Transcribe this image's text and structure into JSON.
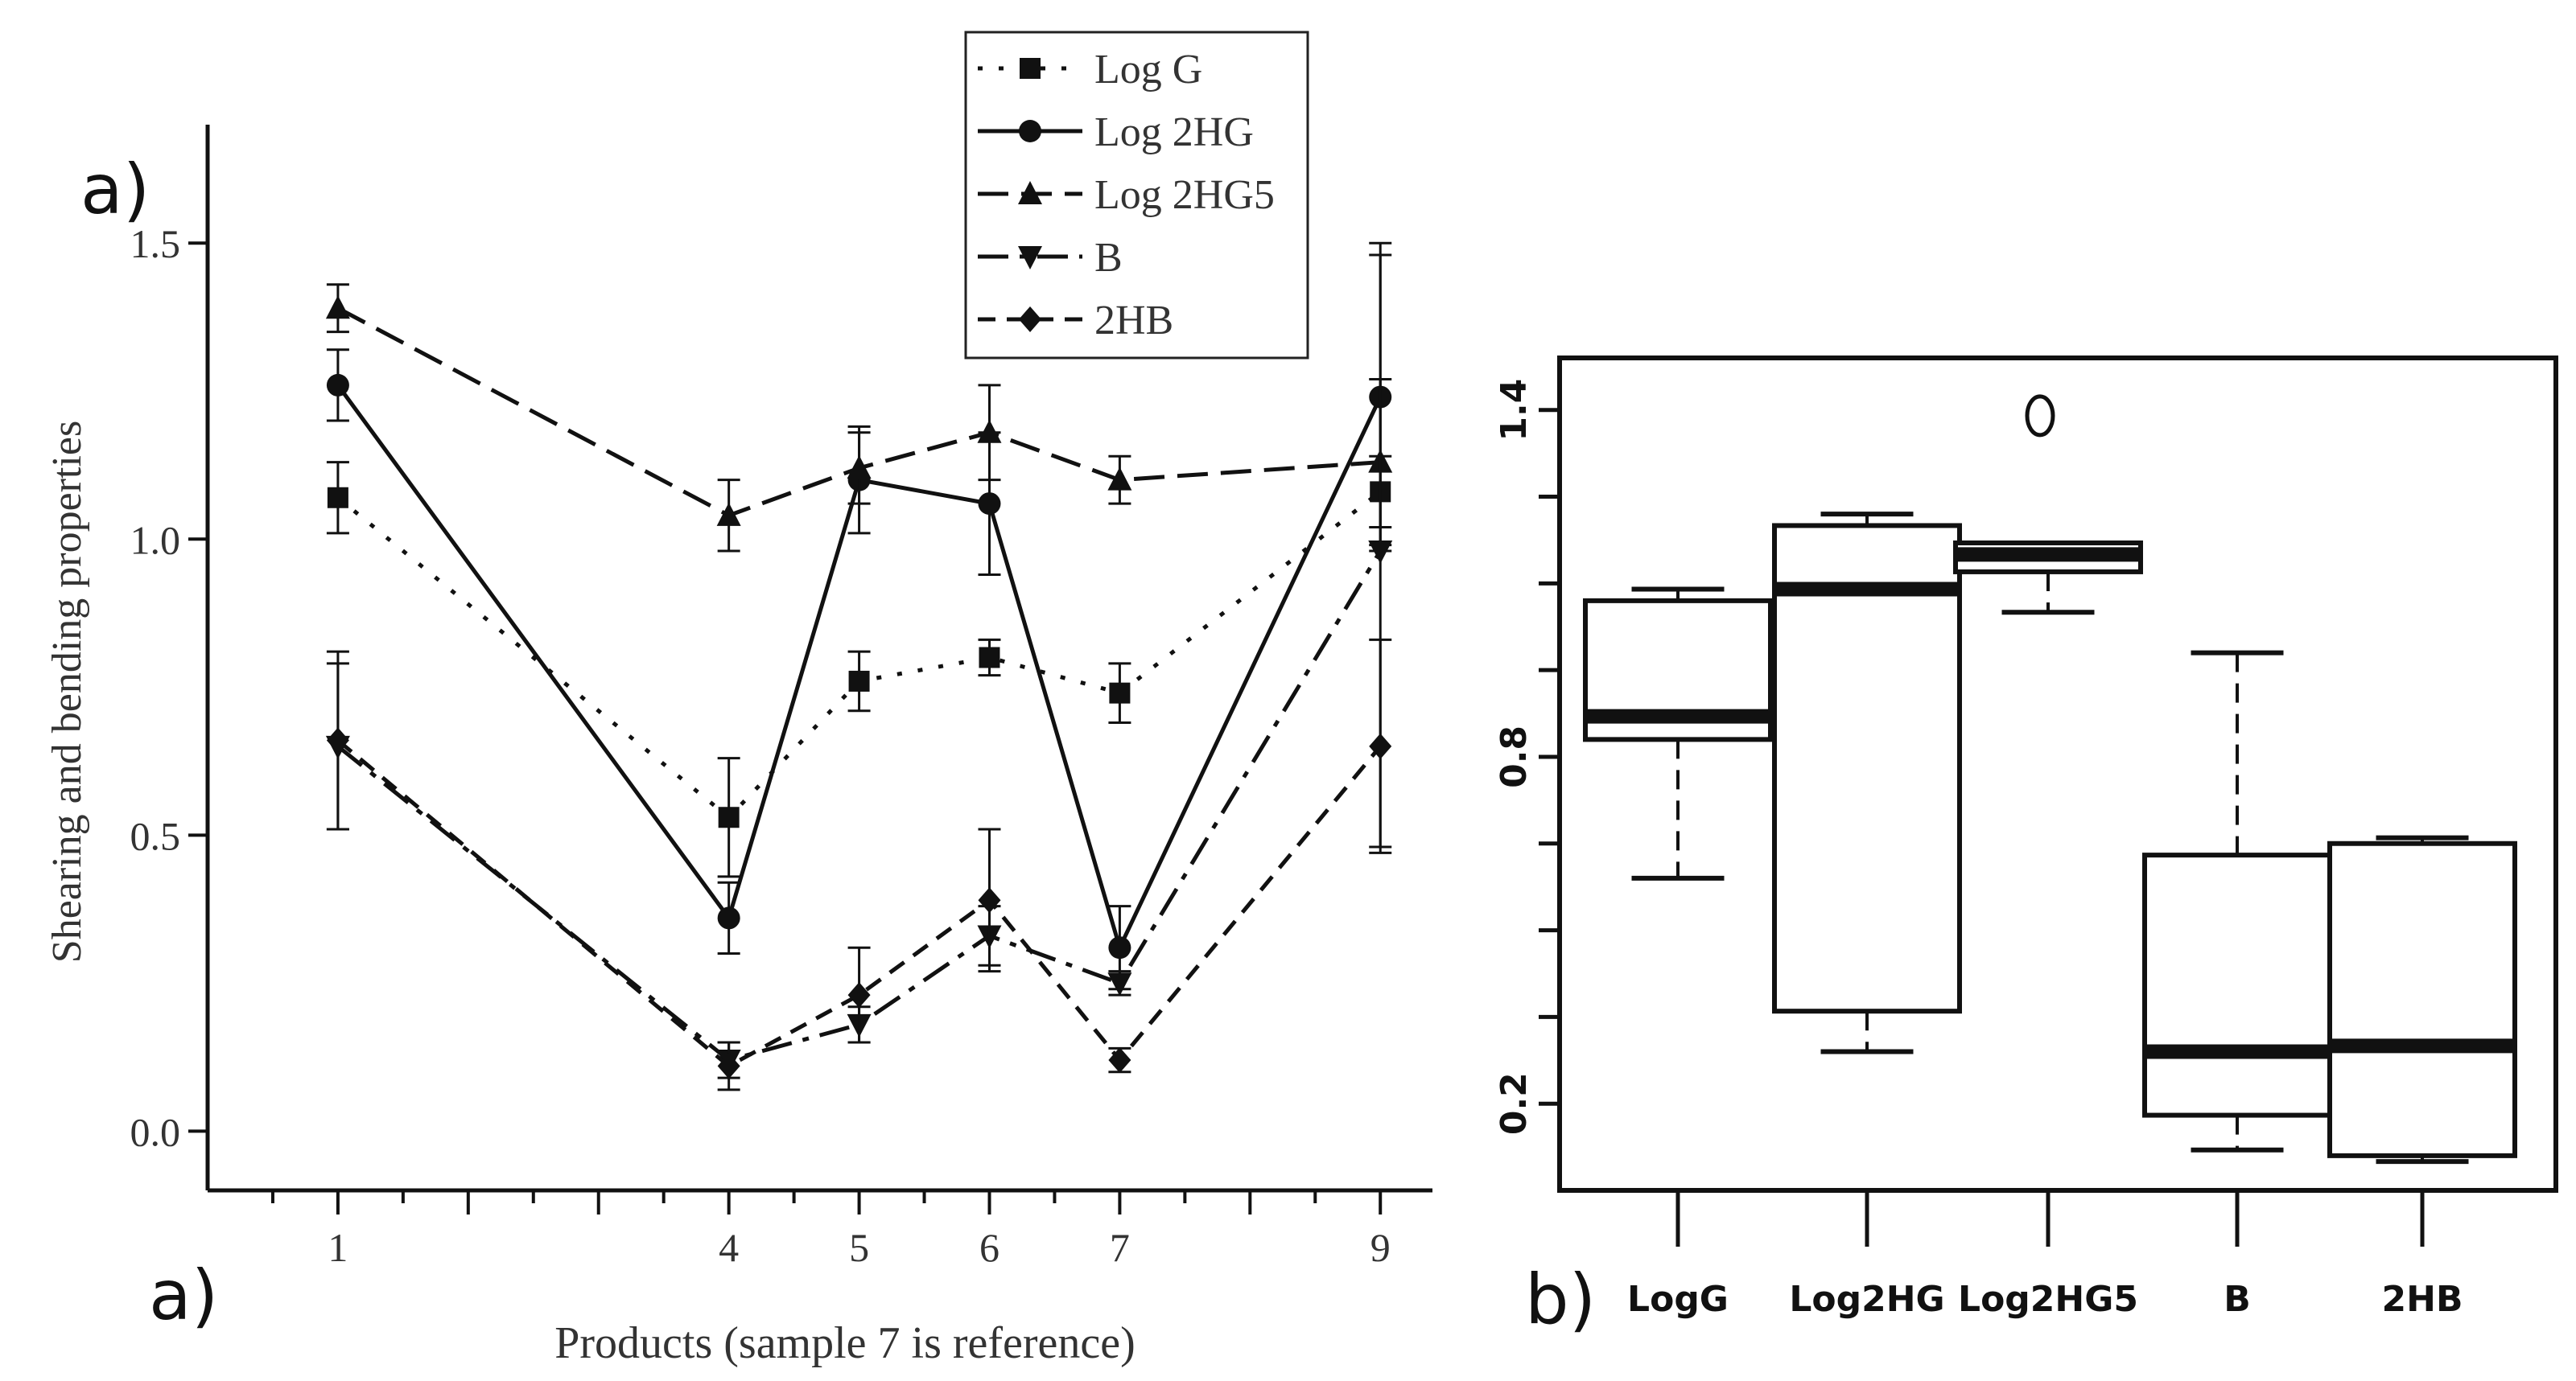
{
  "chart_data": [
    {
      "panel_label_top": "a)",
      "panel_label_bottom": "a)",
      "type": "line",
      "title": "",
      "xlabel": "Products (sample 7 is reference)",
      "ylabel": "Shearing and bending properties",
      "xlim": [
        0,
        9.4
      ],
      "ylim": [
        -0.1,
        1.7
      ],
      "xticks": [
        1,
        4,
        5,
        6,
        7,
        9
      ],
      "xtick_labels": [
        "1",
        "4",
        "5",
        "6",
        "7",
        "9"
      ],
      "yticks": [
        0.0,
        0.5,
        1.0,
        1.5
      ],
      "ytick_labels": [
        "0.0",
        "0.5",
        "1.0",
        "1.5"
      ],
      "x": [
        1,
        4,
        5,
        6,
        7,
        9
      ],
      "legend_position": "top-right",
      "series": [
        {
          "name": "Log G",
          "marker": "square",
          "dash": "dot",
          "values": [
            1.07,
            0.53,
            0.76,
            0.8,
            0.74,
            1.08
          ],
          "errors": [
            0.06,
            0.1,
            0.05,
            0.03,
            0.05,
            0.06
          ]
        },
        {
          "name": "Log 2HG",
          "marker": "circle",
          "dash": "solid",
          "values": [
            1.26,
            0.36,
            1.1,
            1.06,
            0.31,
            1.24
          ],
          "errors": [
            0.06,
            0.06,
            0.09,
            0.12,
            0.07,
            0.26
          ]
        },
        {
          "name": "Log 2HG5",
          "marker": "triangle-up",
          "dash": "longdash",
          "values": [
            1.39,
            1.04,
            1.12,
            1.18,
            1.1,
            1.13
          ],
          "errors": [
            0.04,
            0.06,
            0.06,
            0.08,
            0.04,
            0.14
          ]
        },
        {
          "name": "B",
          "marker": "triangle-down",
          "dash": "dashdot",
          "values": [
            0.65,
            0.12,
            0.18,
            0.33,
            0.25,
            0.98
          ],
          "errors": [
            0.14,
            0.03,
            0.03,
            0.05,
            0.02,
            0.5
          ]
        },
        {
          "name": "2HB",
          "marker": "diamond",
          "dash": "dash",
          "values": [
            0.66,
            0.11,
            0.23,
            0.39,
            0.12,
            0.65
          ],
          "errors": [
            0.15,
            0.04,
            0.08,
            0.12,
            0.02,
            0.18
          ]
        }
      ]
    },
    {
      "panel_label": "b)",
      "type": "box",
      "title": "",
      "categories": [
        "LogG",
        "Log2HG",
        "Log2HG5",
        "B",
        "2HB"
      ],
      "ylim": [
        0.05,
        1.49
      ],
      "yticks": [
        0.2,
        0.8,
        1.4
      ],
      "ytick_labels": [
        "0.2",
        "0.8",
        "1.4"
      ],
      "boxes": [
        {
          "whisker_low": 0.59,
          "q1": 0.83,
          "median": 0.87,
          "q3": 1.07,
          "whisker_high": 1.09,
          "outliers": []
        },
        {
          "whisker_low": 0.29,
          "q1": 0.36,
          "median": 1.09,
          "q3": 1.2,
          "whisker_high": 1.22,
          "outliers": []
        },
        {
          "whisker_low": 1.05,
          "q1": 1.12,
          "median": 1.15,
          "q3": 1.17,
          "whisker_high": 1.17,
          "outliers": [
            1.39
          ]
        },
        {
          "whisker_low": 0.12,
          "q1": 0.18,
          "median": 0.29,
          "q3": 0.63,
          "whisker_high": 0.98,
          "outliers": []
        },
        {
          "whisker_low": 0.1,
          "q1": 0.11,
          "median": 0.3,
          "q3": 0.65,
          "whisker_high": 0.66,
          "outliers": []
        }
      ]
    }
  ]
}
